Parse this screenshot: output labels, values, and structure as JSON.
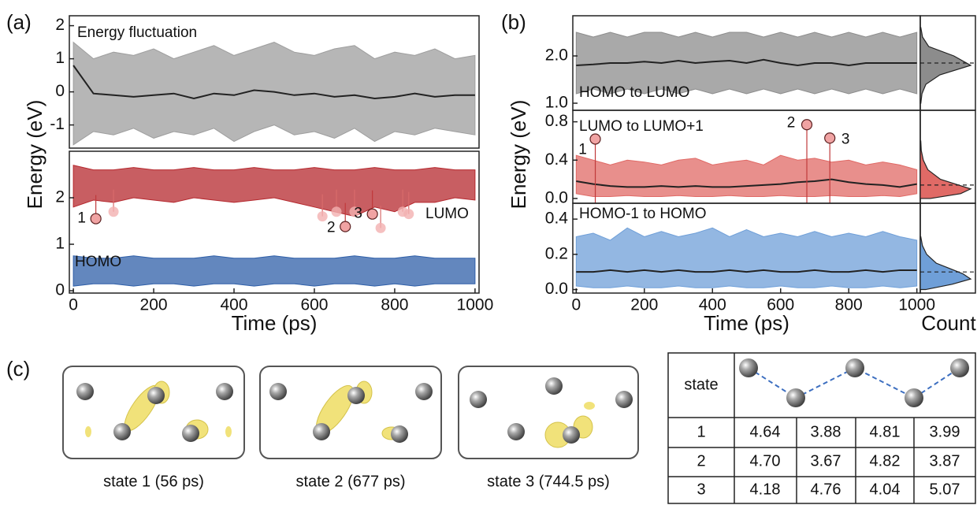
{
  "panel_labels": [
    "(a)",
    "(b)",
    "(c)"
  ],
  "chart_data": [
    {
      "type": "line",
      "ylabel": "Energy (eV)",
      "xlim": [
        -10,
        1010
      ],
      "ylim": [
        -1.7,
        2.3
      ],
      "yticks": [
        -1,
        0,
        1,
        2
      ],
      "x": [
        0,
        50,
        100,
        150,
        200,
        250,
        300,
        350,
        400,
        450,
        500,
        550,
        600,
        650,
        700,
        750,
        800,
        850,
        900,
        950,
        1000
      ],
      "series": [
        {
          "name": "Energy fluctuation",
          "color": "#9e9e9e",
          "high": [
            1.5,
            1.0,
            1.2,
            1.1,
            1.3,
            1.0,
            1.2,
            1.4,
            1.1,
            1.3,
            1.5,
            1.2,
            1.1,
            1.3,
            1.4,
            1.0,
            1.2,
            1.1,
            1.3,
            1.0,
            1.1
          ],
          "low": [
            -1.6,
            -1.2,
            -1.3,
            -1.1,
            -1.4,
            -1.2,
            -1.3,
            -1.1,
            -1.5,
            -1.2,
            -1.0,
            -1.3,
            -1.2,
            -1.4,
            -1.1,
            -1.5,
            -1.2,
            -1.3,
            -1.1,
            -1.2,
            -1.3
          ],
          "values": [
            0.8,
            -0.05,
            -0.1,
            -0.15,
            -0.1,
            -0.05,
            -0.2,
            -0.05,
            -0.1,
            0.05,
            0.0,
            -0.1,
            -0.05,
            -0.15,
            -0.1,
            -0.2,
            -0.15,
            -0.05,
            -0.15,
            -0.1,
            -0.1
          ]
        }
      ]
    },
    {
      "type": "line",
      "xlabel": "Time (ps)",
      "xlim": [
        -10,
        1010
      ],
      "ylim": [
        -0.05,
        3.0
      ],
      "yticks": [
        0,
        1,
        2
      ],
      "xticks": [
        0,
        200,
        400,
        600,
        800,
        1000
      ],
      "x": [
        0,
        50,
        100,
        150,
        200,
        250,
        300,
        350,
        400,
        450,
        500,
        550,
        600,
        650,
        700,
        750,
        800,
        850,
        900,
        950,
        1000
      ],
      "series": [
        {
          "name": "LUMO",
          "color": "#b5282e",
          "high": [
            2.7,
            2.6,
            2.6,
            2.65,
            2.6,
            2.6,
            2.65,
            2.6,
            2.6,
            2.65,
            2.6,
            2.6,
            2.65,
            2.6,
            2.6,
            2.65,
            2.6,
            2.6,
            2.65,
            2.6,
            2.6
          ],
          "low": [
            1.8,
            1.95,
            1.9,
            2.0,
            1.95,
            1.9,
            2.0,
            1.95,
            1.9,
            1.95,
            2.0,
            1.9,
            1.8,
            1.7,
            1.6,
            1.8,
            1.7,
            1.9,
            1.9,
            2.0,
            1.95
          ]
        },
        {
          "name": "HOMO",
          "color": "#2f5fa8",
          "high": [
            0.75,
            0.7,
            0.7,
            0.75,
            0.7,
            0.7,
            0.7,
            0.75,
            0.7,
            0.7,
            0.75,
            0.7,
            0.7,
            0.7,
            0.75,
            0.7,
            0.7,
            0.75,
            0.7,
            0.7,
            0.7
          ],
          "low": [
            0.1,
            0.15,
            0.15,
            0.1,
            0.15,
            0.15,
            0.1,
            0.15,
            0.15,
            0.1,
            0.15,
            0.15,
            0.1,
            0.15,
            0.15,
            0.1,
            0.15,
            0.1,
            0.15,
            0.15,
            0.15
          ]
        }
      ],
      "points": [
        {
          "x": 56,
          "y": 1.55,
          "label": "1"
        },
        {
          "x": 677,
          "y": 1.38,
          "label": "2"
        },
        {
          "x": 744.5,
          "y": 1.65,
          "label": "3"
        }
      ],
      "faded_points": {
        "x": [
          100,
          620,
          655,
          700,
          765,
          820,
          835
        ],
        "y": [
          1.7,
          1.6,
          1.7,
          1.7,
          1.35,
          1.7,
          1.65
        ]
      }
    },
    {
      "type": "line",
      "ylabel": "Energy (eV)",
      "xlim": [
        -10,
        1010
      ],
      "ylim": [
        0.85,
        2.85
      ],
      "yticks": [
        {
          "value": 1,
          "label": "1.0"
        },
        {
          "value": 2,
          "label": "2.0"
        }
      ],
      "x": [
        0,
        50,
        100,
        150,
        200,
        250,
        300,
        350,
        400,
        450,
        500,
        550,
        600,
        650,
        700,
        750,
        800,
        850,
        900,
        950,
        1000
      ],
      "series": [
        {
          "name": "HOMO to LUMO",
          "color": "#8c8c8c",
          "high": [
            2.5,
            2.4,
            2.5,
            2.4,
            2.5,
            2.5,
            2.4,
            2.5,
            2.4,
            2.5,
            2.5,
            2.4,
            2.5,
            2.4,
            2.5,
            2.4,
            2.5,
            2.4,
            2.5,
            2.4,
            2.5
          ],
          "low": [
            1.2,
            1.3,
            1.2,
            1.3,
            1.2,
            1.3,
            1.2,
            1.3,
            1.2,
            1.3,
            1.2,
            1.3,
            1.2,
            1.3,
            1.2,
            1.3,
            1.2,
            1.3,
            1.2,
            1.3,
            1.2
          ],
          "values": [
            1.8,
            1.82,
            1.85,
            1.85,
            1.88,
            1.85,
            1.9,
            1.85,
            1.88,
            1.9,
            1.85,
            1.92,
            1.85,
            1.8,
            1.85,
            1.85,
            1.8,
            1.85,
            1.85,
            1.85,
            1.85
          ]
        }
      ],
      "hist": {
        "bins": [
          1.0,
          1.2,
          1.4,
          1.6,
          1.8,
          2.0,
          2.2,
          2.4,
          2.6
        ],
        "counts": [
          1,
          3,
          10,
          35,
          90,
          60,
          15,
          4,
          1
        ],
        "mean_line": 1.85
      }
    },
    {
      "type": "line",
      "xlim": [
        -10,
        1010
      ],
      "ylim": [
        -0.05,
        0.92
      ],
      "yticks": [
        {
          "value": 0,
          "label": "0.0"
        },
        {
          "value": 0.4,
          "label": "0.4"
        },
        {
          "value": 0.8,
          "label": "0.8"
        }
      ],
      "x": [
        0,
        50,
        100,
        150,
        200,
        250,
        300,
        350,
        400,
        450,
        500,
        550,
        600,
        650,
        700,
        750,
        800,
        850,
        900,
        950,
        1000
      ],
      "series": [
        {
          "name": "LUMO to LUMO+1",
          "color": "#e06a66",
          "high": [
            0.45,
            0.4,
            0.35,
            0.4,
            0.38,
            0.35,
            0.4,
            0.42,
            0.35,
            0.38,
            0.4,
            0.35,
            0.45,
            0.4,
            0.42,
            0.38,
            0.4,
            0.35,
            0.38,
            0.35,
            0.3
          ],
          "low": [
            0.05,
            0.02,
            0.02,
            0.03,
            0.02,
            0.02,
            0.03,
            0.02,
            0.02,
            0.03,
            0.02,
            0.02,
            0.03,
            0.02,
            0.02,
            0.03,
            0.02,
            0.02,
            0.03,
            0.02,
            0.05
          ],
          "values": [
            0.18,
            0.15,
            0.13,
            0.12,
            0.12,
            0.13,
            0.12,
            0.13,
            0.12,
            0.12,
            0.13,
            0.14,
            0.15,
            0.17,
            0.18,
            0.2,
            0.17,
            0.15,
            0.14,
            0.12,
            0.15
          ]
        }
      ],
      "points": [
        {
          "x": 56,
          "y": 0.62,
          "label": "1"
        },
        {
          "x": 677,
          "y": 0.77,
          "label": "2"
        },
        {
          "x": 744.5,
          "y": 0.63,
          "label": "3"
        }
      ],
      "hist": {
        "bins": [
          0.0,
          0.05,
          0.1,
          0.15,
          0.2,
          0.3,
          0.4,
          0.5,
          0.6
        ],
        "counts": [
          20,
          80,
          100,
          70,
          40,
          15,
          6,
          2,
          1
        ],
        "mean_line": 0.14
      }
    },
    {
      "type": "line",
      "xlabel": "Time (ps)",
      "count_label": "Count",
      "xlim": [
        -10,
        1010
      ],
      "ylim": [
        -0.02,
        0.49
      ],
      "yticks": [
        {
          "value": 0,
          "label": "0.0"
        },
        {
          "value": 0.2,
          "label": "0.2"
        },
        {
          "value": 0.4,
          "label": "0.4"
        }
      ],
      "xticks": [
        0,
        200,
        400,
        600,
        800,
        1000
      ],
      "x": [
        0,
        50,
        100,
        150,
        200,
        250,
        300,
        350,
        400,
        450,
        500,
        550,
        600,
        650,
        700,
        750,
        800,
        850,
        900,
        950,
        1000
      ],
      "series": [
        {
          "name": "HOMO-1 to HOMO",
          "color": "#6f9fd8",
          "high": [
            0.3,
            0.32,
            0.28,
            0.35,
            0.3,
            0.33,
            0.3,
            0.32,
            0.35,
            0.3,
            0.34,
            0.3,
            0.32,
            0.3,
            0.33,
            0.3,
            0.32,
            0.3,
            0.33,
            0.3,
            0.28
          ],
          "low": [
            0.02,
            0.01,
            0.01,
            0.02,
            0.01,
            0.01,
            0.02,
            0.01,
            0.01,
            0.02,
            0.01,
            0.01,
            0.02,
            0.01,
            0.01,
            0.02,
            0.01,
            0.01,
            0.02,
            0.01,
            0.02
          ],
          "values": [
            0.1,
            0.1,
            0.11,
            0.1,
            0.11,
            0.1,
            0.11,
            0.1,
            0.1,
            0.11,
            0.1,
            0.11,
            0.1,
            0.1,
            0.11,
            0.1,
            0.1,
            0.11,
            0.1,
            0.11,
            0.11
          ]
        }
      ],
      "hist": {
        "bins": [
          0.0,
          0.03,
          0.06,
          0.09,
          0.12,
          0.15,
          0.2,
          0.25,
          0.3
        ],
        "counts": [
          10,
          60,
          95,
          80,
          55,
          30,
          12,
          4,
          1
        ],
        "mean_line": 0.1
      }
    }
  ],
  "captions": [
    "state 1 (56 ps)",
    "state 2 (677 ps)",
    "state 3 (744.5 ps)"
  ],
  "table": {
    "header": "state",
    "rows": [
      [
        "1",
        "4.64",
        "3.88",
        "4.81",
        "3.99"
      ],
      [
        "2",
        "4.70",
        "3.67",
        "4.82",
        "3.87"
      ],
      [
        "3",
        "4.18",
        "4.76",
        "4.04",
        "5.07"
      ]
    ]
  }
}
